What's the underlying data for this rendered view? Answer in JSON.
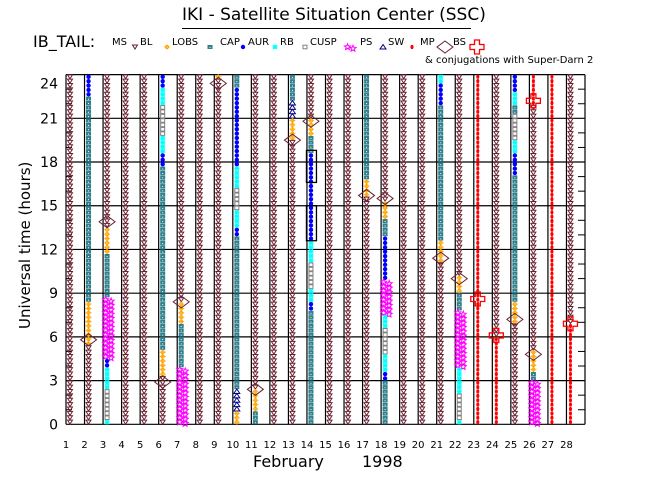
{
  "title": "IKI - Satellite Situation Center (SSC)",
  "header_label": "IB_TAIL:",
  "legend": [
    {
      "label": "MS",
      "region": "MS",
      "color": "#6b2030"
    },
    {
      "label": "BL",
      "region": "LOBS",
      "color": "#ffa500"
    },
    {
      "label": "LOBS",
      "region": "CAP",
      "color": "#2f7f8c"
    },
    {
      "label": "CAP",
      "region": "AUR",
      "color": "#0000ff"
    },
    {
      "label": "AUR",
      "region": "RB",
      "color": "#00ffff"
    },
    {
      "label": "RB",
      "region": "CUSP",
      "color": "#808080"
    },
    {
      "label": "CUSP",
      "region": "PS",
      "color": "#ff00ff"
    },
    {
      "label": "PS",
      "region": "SW",
      "color": "#000080"
    },
    {
      "label": "SW",
      "region": "MP",
      "color": "#ff0000"
    },
    {
      "label": "MP",
      "region": "BS",
      "color": "#6b2030"
    },
    {
      "label": "BS",
      "region": "CONJ",
      "color": "#ff0000"
    }
  ],
  "subtitle": "& conjugations with Super-Darn 2",
  "chart_data": {
    "type": "scatter",
    "ylabel": "Universal time (hours)",
    "xlabel_month": "February",
    "xlabel_year": "1998",
    "xlim": [
      1,
      28
    ],
    "ylim": [
      0,
      24
    ],
    "yticks": [
      "0",
      "3",
      "6",
      "9",
      "12",
      "15",
      "18",
      "21",
      "24"
    ],
    "xticks": [
      "1",
      "2",
      "3",
      "4",
      "5",
      "6",
      "7",
      "8",
      "9",
      "10",
      "11",
      "12",
      "13",
      "14",
      "15",
      "16",
      "17",
      "18",
      "19",
      "20",
      "21",
      "22",
      "23",
      "24",
      "25",
      "26",
      "27",
      "28"
    ],
    "grid": true,
    "days": [
      {
        "day": 1,
        "segments": [
          [
            0,
            24,
            "MS"
          ]
        ]
      },
      {
        "day": 2,
        "segments": [
          [
            22.6,
            24,
            "AUR"
          ],
          [
            8.4,
            22.6,
            "CAP"
          ],
          [
            5.5,
            8.4,
            "LOBS"
          ],
          [
            0,
            5.5,
            "MS"
          ]
        ]
      },
      {
        "day": 3,
        "segments": [
          [
            13.6,
            24,
            "MS"
          ],
          [
            11.8,
            13.6,
            "LOBS"
          ],
          [
            8.6,
            11.8,
            "CAP"
          ],
          [
            4.5,
            8.6,
            "PS"
          ],
          [
            3.8,
            4.5,
            "AUR"
          ],
          [
            2.4,
            3.8,
            "RB"
          ],
          [
            0.4,
            2.4,
            "CUSP"
          ],
          [
            0,
            0.4,
            "RB"
          ]
        ]
      },
      {
        "day": 4,
        "segments": [
          [
            0,
            24,
            "MS"
          ]
        ]
      },
      {
        "day": 5,
        "segments": [
          [
            0,
            24,
            "MS"
          ]
        ]
      },
      {
        "day": 6,
        "segments": [
          [
            23.2,
            24,
            "AUR"
          ],
          [
            21.8,
            23.2,
            "RB"
          ],
          [
            19.7,
            21.8,
            "CUSP"
          ],
          [
            18.7,
            19.7,
            "RB"
          ],
          [
            17.8,
            18.7,
            "AUR"
          ],
          [
            5.1,
            17.8,
            "CAP"
          ],
          [
            3.3,
            5.1,
            "LOBS"
          ],
          [
            0,
            3.3,
            "MS"
          ]
        ]
      },
      {
        "day": 7,
        "segments": [
          [
            8.4,
            24,
            "MS"
          ],
          [
            6.8,
            8.4,
            "LOBS"
          ],
          [
            4.0,
            6.8,
            "CAP"
          ],
          [
            0,
            4.0,
            "PS"
          ]
        ]
      },
      {
        "day": 8,
        "segments": [
          [
            0,
            24,
            "MS"
          ]
        ]
      },
      {
        "day": 9,
        "segments": [
          [
            23.6,
            24,
            "LOBS"
          ],
          [
            0,
            23.6,
            "MS"
          ]
        ]
      },
      {
        "day": 10,
        "segments": [
          [
            23,
            24,
            "CAP"
          ],
          [
            17.6,
            23,
            "AUR"
          ],
          [
            16.3,
            17.6,
            "RB"
          ],
          [
            14.6,
            16.3,
            "CUSP"
          ],
          [
            13.6,
            14.6,
            "RB"
          ],
          [
            13,
            13.6,
            "AUR"
          ],
          [
            2.5,
            13,
            "CAP"
          ],
          [
            1.0,
            2.5,
            "SW"
          ],
          [
            0,
            1.0,
            "LOBS"
          ]
        ]
      },
      {
        "day": 11,
        "segments": [
          [
            2.4,
            24,
            "MS"
          ],
          [
            0.9,
            2.4,
            "LOBS"
          ],
          [
            0,
            0.9,
            "CAP"
          ]
        ]
      },
      {
        "day": 12,
        "segments": [
          [
            0,
            24,
            "MS"
          ]
        ]
      },
      {
        "day": 13,
        "segments": [
          [
            22.3,
            24,
            "CAP"
          ],
          [
            21,
            22.3,
            "SW"
          ],
          [
            19.6,
            21,
            "LOBS"
          ],
          [
            0,
            19.6,
            "MS"
          ]
        ]
      },
      {
        "day": 14,
        "segments": [
          [
            20.9,
            24,
            "MS"
          ],
          [
            19.8,
            20.9,
            "LOBS"
          ],
          [
            18.7,
            19.8,
            "CAP"
          ],
          [
            12.5,
            18.7,
            "AUR"
          ],
          [
            11.1,
            12.5,
            "RB"
          ],
          [
            9.2,
            11.1,
            "CUSP"
          ],
          [
            8.3,
            9.2,
            "RB"
          ],
          [
            7.9,
            8.3,
            "AUR"
          ],
          [
            0,
            7.9,
            "CAP"
          ]
        ]
      },
      {
        "day": 15,
        "segments": [
          [
            0,
            24,
            "MS"
          ]
        ]
      },
      {
        "day": 16,
        "segments": [
          [
            0,
            24,
            "MS"
          ]
        ]
      },
      {
        "day": 17,
        "segments": [
          [
            16.9,
            24,
            "CAP"
          ],
          [
            15.6,
            16.9,
            "LOBS"
          ],
          [
            0,
            15.6,
            "MS"
          ]
        ]
      },
      {
        "day": 18,
        "segments": [
          [
            15.2,
            24,
            "MS"
          ],
          [
            14.2,
            15.2,
            "LOBS"
          ],
          [
            12.8,
            14.2,
            "CAP"
          ],
          [
            9.9,
            12.8,
            "AUR"
          ],
          [
            7.6,
            9.9,
            "PS"
          ],
          [
            6.5,
            7.6,
            "RB"
          ],
          [
            4.9,
            6.5,
            "CUSP"
          ],
          [
            3.7,
            4.9,
            "RB"
          ],
          [
            2.9,
            3.7,
            "AUR"
          ],
          [
            0,
            2.9,
            "CAP"
          ]
        ]
      },
      {
        "day": 19,
        "segments": [
          [
            0,
            24,
            "MS"
          ]
        ]
      },
      {
        "day": 20,
        "segments": [
          [
            0,
            24,
            "MS"
          ]
        ]
      },
      {
        "day": 21,
        "segments": [
          [
            23.4,
            24,
            "RB"
          ],
          [
            22.0,
            23.4,
            "AUR"
          ],
          [
            12.5,
            22.0,
            "CAP"
          ],
          [
            11.1,
            12.5,
            "LOBS"
          ],
          [
            0,
            11.1,
            "MS"
          ]
        ]
      },
      {
        "day": 22,
        "segments": [
          [
            10.1,
            24,
            "MS"
          ],
          [
            8.9,
            10.1,
            "LOBS"
          ],
          [
            7.9,
            8.9,
            "CAP"
          ],
          [
            4.0,
            7.9,
            "PS"
          ],
          [
            3.8,
            4.0,
            "AUR"
          ],
          [
            2.1,
            3.8,
            "RB"
          ],
          [
            0.4,
            2.1,
            "CUSP"
          ],
          [
            0,
            0.4,
            "RB"
          ]
        ]
      },
      {
        "day": 23,
        "segments": [
          [
            0,
            24,
            "MP"
          ]
        ]
      },
      {
        "day": 24,
        "segments": [
          [
            6.0,
            24,
            "MS"
          ],
          [
            0,
            6.0,
            "MP"
          ]
        ]
      },
      {
        "day": 25,
        "segments": [
          [
            22.9,
            24,
            "AUR"
          ],
          [
            22.0,
            22.9,
            "RB"
          ],
          [
            21.2,
            22.0,
            "CAP"
          ],
          [
            19.5,
            21.2,
            "CUSP"
          ],
          [
            18.5,
            19.5,
            "RB"
          ],
          [
            17.2,
            18.5,
            "AUR"
          ],
          [
            8.4,
            17.2,
            "CAP"
          ],
          [
            7.0,
            8.4,
            "LOBS"
          ],
          [
            0,
            7.0,
            "MS"
          ]
        ]
      },
      {
        "day": 26,
        "segments": [
          [
            22,
            24,
            "MP"
          ],
          [
            5.0,
            22,
            "MS"
          ],
          [
            3.6,
            5.0,
            "LOBS"
          ],
          [
            3.1,
            3.6,
            "CAP"
          ],
          [
            0,
            3.1,
            "PS"
          ]
        ]
      },
      {
        "day": 27,
        "segments": [
          [
            0,
            24,
            "MP"
          ]
        ]
      },
      {
        "day": 28,
        "segments": [
          [
            7.0,
            24,
            "MS"
          ],
          [
            0,
            7.0,
            "MP"
          ]
        ]
      }
    ],
    "bow_shock_crossings": [
      [
        2,
        5.8
      ],
      [
        3,
        13.9
      ],
      [
        6,
        2.9
      ],
      [
        7,
        8.4
      ],
      [
        9,
        23.4
      ],
      [
        11,
        2.4
      ],
      [
        13,
        19.5
      ],
      [
        14,
        20.8
      ],
      [
        17,
        15.7
      ],
      [
        18,
        15.5
      ],
      [
        21,
        11.4
      ],
      [
        22,
        10.0
      ],
      [
        25,
        7.2
      ],
      [
        26,
        4.8
      ]
    ],
    "conjugations": [
      [
        23,
        8.6
      ],
      [
        24,
        6.1
      ],
      [
        26,
        22.2
      ],
      [
        28,
        6.9
      ]
    ],
    "highlight_boxes": [
      [
        14,
        16.6,
        18.8
      ],
      [
        14,
        12.6,
        15.0
      ]
    ]
  }
}
